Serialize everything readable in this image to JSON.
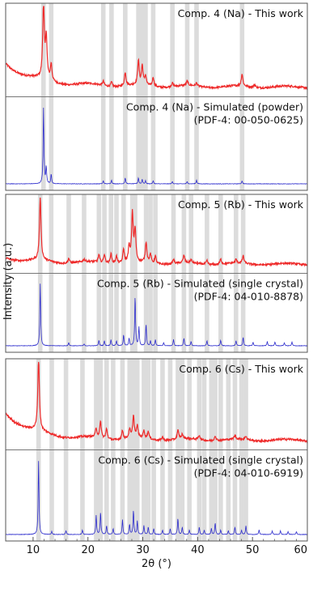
{
  "chart_data": {
    "type": "line",
    "xlabel": "2θ (°)",
    "ylabel": "Intensity (a.u.)",
    "xlim": [
      5,
      60
    ],
    "xticks": [
      "10",
      "20",
      "30",
      "40",
      "50",
      "60"
    ],
    "grid": false,
    "colors": {
      "experimental": "#ee2a2a",
      "simulated": "#2a2acc",
      "reflection_band": "#dcdcdc",
      "frame": "#555555"
    },
    "groups": [
      {
        "key": "na",
        "reflection_positions": [
          11.9,
          13.3,
          22.8,
          24.3,
          26.8,
          29.2,
          29.9,
          30.5,
          31.9,
          35.4,
          38.1,
          39.8,
          48.1
        ],
        "panels": [
          {
            "label_lines": [
              "Comp. 4 (Na) - This work"
            ],
            "baseline": 0.25,
            "peaks": [
              [
                11.9,
                1.0
              ],
              [
                12.4,
                0.55
              ],
              [
                13.3,
                0.22
              ],
              [
                22.8,
                0.06
              ],
              [
                24.3,
                0.06
              ],
              [
                26.8,
                0.18
              ],
              [
                29.2,
                0.32
              ],
              [
                29.9,
                0.25
              ],
              [
                30.5,
                0.12
              ],
              [
                31.9,
                0.12
              ],
              [
                35.4,
                0.05
              ],
              [
                38.1,
                0.06
              ],
              [
                39.8,
                0.04
              ],
              [
                48.1,
                0.16
              ],
              [
                50.4,
                0.04
              ]
            ]
          },
          {
            "label_lines": [
              "Comp. 4 (Na) - Simulated (powder)",
              "(PDF-4: 00-050-0625)"
            ],
            "baseline": 0.0,
            "peaks": [
              [
                11.9,
                1.0
              ],
              [
                12.4,
                0.22
              ],
              [
                13.3,
                0.13
              ],
              [
                22.8,
                0.04
              ],
              [
                24.3,
                0.05
              ],
              [
                26.8,
                0.08
              ],
              [
                29.2,
                0.08
              ],
              [
                29.9,
                0.06
              ],
              [
                30.5,
                0.04
              ],
              [
                31.9,
                0.04
              ],
              [
                35.4,
                0.03
              ],
              [
                38.1,
                0.03
              ],
              [
                39.8,
                0.05
              ],
              [
                48.1,
                0.04
              ]
            ]
          }
        ]
      },
      {
        "key": "rb",
        "reflection_positions": [
          11.3,
          13.3,
          16.5,
          19.3,
          22.0,
          23.0,
          24.2,
          25.2,
          26.5,
          28.1,
          28.6,
          30.6,
          31.4,
          32.3,
          35.6,
          37.5,
          38.8,
          41.7,
          44.2,
          47.0,
          48.3
        ],
        "panels": [
          {
            "label_lines": [
              "Comp. 5 (Rb) - This work"
            ],
            "baseline": 0.06,
            "peaks": [
              [
                11.3,
                1.0
              ],
              [
                16.5,
                0.08
              ],
              [
                19.3,
                0.04
              ],
              [
                22.0,
                0.12
              ],
              [
                23.0,
                0.14
              ],
              [
                24.2,
                0.16
              ],
              [
                25.2,
                0.12
              ],
              [
                26.5,
                0.22
              ],
              [
                27.5,
                0.24
              ],
              [
                28.1,
                0.78
              ],
              [
                28.6,
                0.5
              ],
              [
                30.6,
                0.33
              ],
              [
                31.4,
                0.14
              ],
              [
                32.3,
                0.12
              ],
              [
                35.6,
                0.07
              ],
              [
                37.5,
                0.12
              ],
              [
                38.8,
                0.05
              ],
              [
                41.7,
                0.06
              ],
              [
                44.2,
                0.08
              ],
              [
                47.0,
                0.06
              ],
              [
                48.3,
                0.12
              ]
            ]
          },
          {
            "label_lines": [
              "Comp. 5 (Rb) - Simulated (single crystal)",
              "(PDF-4: 04-010-8878)"
            ],
            "baseline": 0.0,
            "peaks": [
              [
                11.3,
                1.0
              ],
              [
                16.5,
                0.05
              ],
              [
                19.3,
                0.03
              ],
              [
                22.0,
                0.09
              ],
              [
                23.0,
                0.08
              ],
              [
                24.2,
                0.1
              ],
              [
                25.2,
                0.08
              ],
              [
                26.5,
                0.18
              ],
              [
                27.5,
                0.12
              ],
              [
                28.6,
                0.8
              ],
              [
                29.3,
                0.3
              ],
              [
                30.6,
                0.35
              ],
              [
                31.4,
                0.08
              ],
              [
                32.3,
                0.1
              ],
              [
                33.8,
                0.05
              ],
              [
                35.6,
                0.1
              ],
              [
                37.5,
                0.12
              ],
              [
                38.8,
                0.07
              ],
              [
                41.7,
                0.08
              ],
              [
                44.2,
                0.09
              ],
              [
                47.0,
                0.08
              ],
              [
                48.3,
                0.14
              ],
              [
                50.1,
                0.06
              ],
              [
                52.7,
                0.07
              ],
              [
                54.1,
                0.06
              ],
              [
                55.8,
                0.05
              ],
              [
                57.2,
                0.06
              ]
            ]
          }
        ]
      },
      {
        "key": "cs",
        "reflection_positions": [
          11.0,
          13.4,
          16.0,
          19.0,
          21.5,
          22.3,
          23.4,
          24.6,
          26.3,
          27.6,
          28.3,
          29.0,
          30.2,
          31.0,
          32.0,
          33.6,
          35.0,
          36.4,
          37.2,
          38.5,
          40.3,
          41.2,
          42.5,
          43.2,
          44.2,
          45.6,
          46.8,
          48.0,
          48.8
        ],
        "panels": [
          {
            "label_lines": [
              "Comp. 6 (Cs) - This work"
            ],
            "baseline": 0.3,
            "peaks": [
              [
                11.0,
                1.0
              ],
              [
                21.5,
                0.12
              ],
              [
                22.3,
                0.22
              ],
              [
                23.4,
                0.14
              ],
              [
                26.3,
                0.12
              ],
              [
                27.6,
                0.12
              ],
              [
                28.3,
                0.3
              ],
              [
                29.0,
                0.16
              ],
              [
                30.2,
                0.1
              ],
              [
                31.0,
                0.1
              ],
              [
                33.6,
                0.05
              ],
              [
                36.4,
                0.12
              ],
              [
                37.2,
                0.06
              ],
              [
                40.3,
                0.06
              ],
              [
                43.2,
                0.07
              ],
              [
                46.8,
                0.05
              ],
              [
                48.8,
                0.05
              ]
            ]
          },
          {
            "label_lines": [
              "Comp. 6 (Cs) - Simulated (single crystal)",
              "(PDF-4: 04-010-6919)"
            ],
            "baseline": 0.0,
            "peaks": [
              [
                11.0,
                1.0
              ],
              [
                13.4,
                0.04
              ],
              [
                16.0,
                0.05
              ],
              [
                19.0,
                0.06
              ],
              [
                21.5,
                0.26
              ],
              [
                22.3,
                0.3
              ],
              [
                23.4,
                0.12
              ],
              [
                24.6,
                0.08
              ],
              [
                26.3,
                0.2
              ],
              [
                27.6,
                0.14
              ],
              [
                28.3,
                0.33
              ],
              [
                29.0,
                0.18
              ],
              [
                30.2,
                0.12
              ],
              [
                31.0,
                0.1
              ],
              [
                32.0,
                0.08
              ],
              [
                33.6,
                0.06
              ],
              [
                35.0,
                0.08
              ],
              [
                36.4,
                0.22
              ],
              [
                37.2,
                0.1
              ],
              [
                38.5,
                0.06
              ],
              [
                40.3,
                0.1
              ],
              [
                41.2,
                0.06
              ],
              [
                42.5,
                0.08
              ],
              [
                43.2,
                0.16
              ],
              [
                44.2,
                0.06
              ],
              [
                45.6,
                0.05
              ],
              [
                46.8,
                0.1
              ],
              [
                48.0,
                0.06
              ],
              [
                48.8,
                0.12
              ],
              [
                51.2,
                0.06
              ],
              [
                53.6,
                0.05
              ],
              [
                55.1,
                0.05
              ],
              [
                56.5,
                0.04
              ],
              [
                58.0,
                0.04
              ]
            ]
          }
        ]
      }
    ]
  }
}
